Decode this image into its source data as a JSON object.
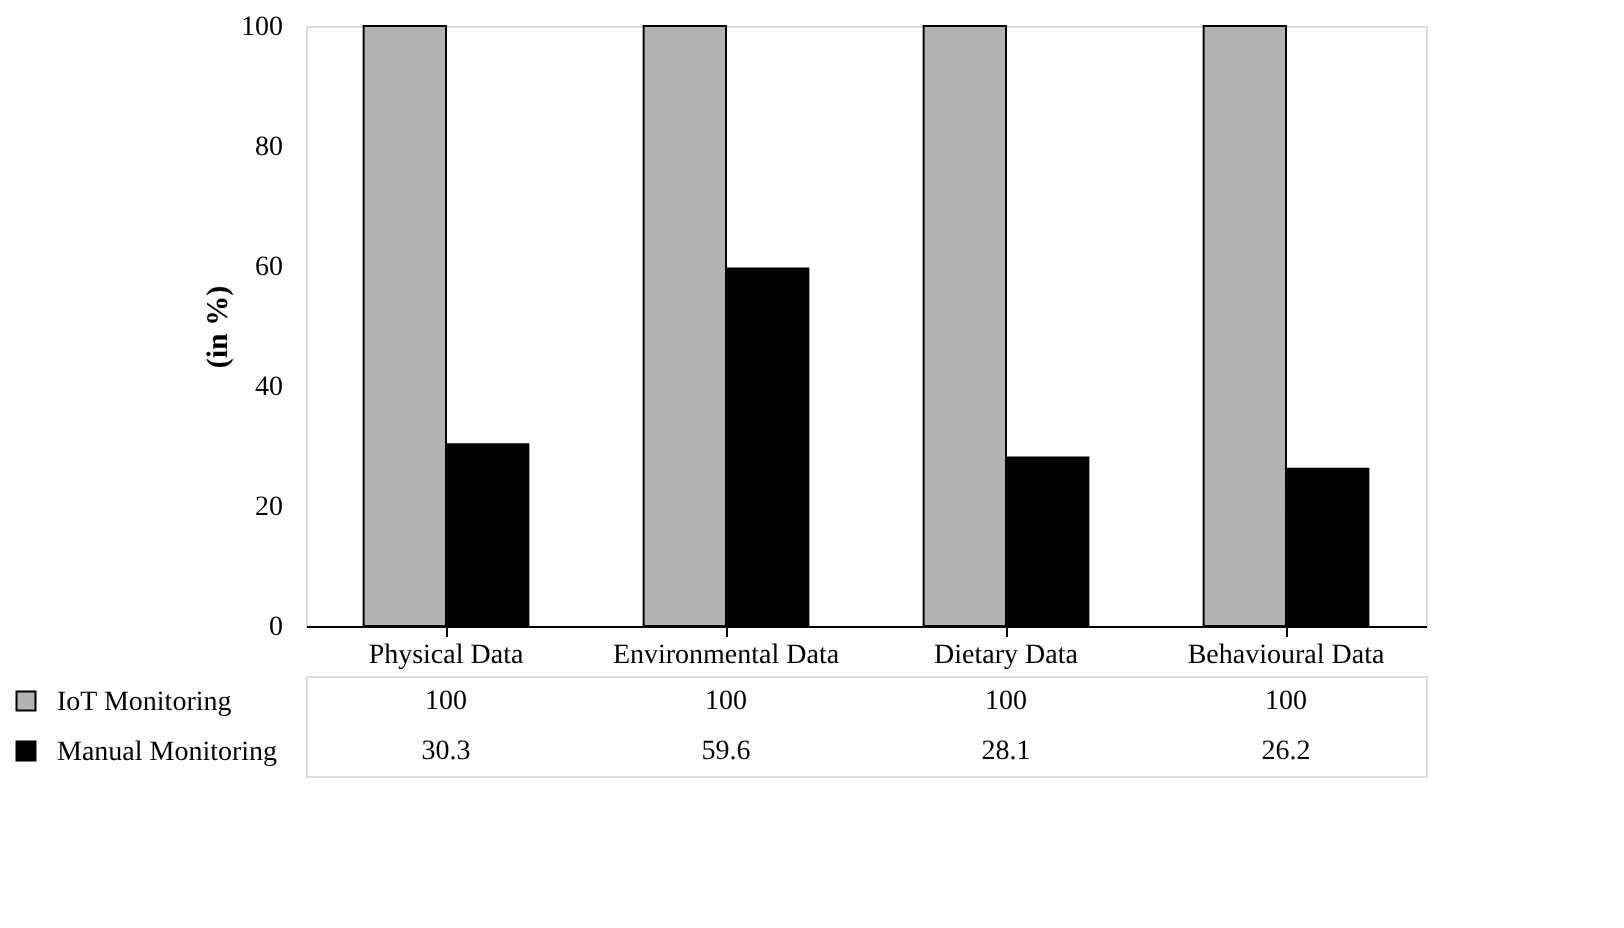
{
  "chart_data": {
    "type": "bar",
    "ylabel": "(in %)",
    "categories": [
      "Physical Data",
      "Environmental Data",
      "Dietary Data",
      "Behavioural Data"
    ],
    "series": [
      {
        "name": "IoT Monitoring",
        "color": "#b3b3b3",
        "values": [
          100,
          100,
          100,
          100
        ]
      },
      {
        "name": "Manual Monitoring",
        "color": "#000000",
        "values": [
          30.3,
          59.6,
          28.1,
          26.2
        ]
      }
    ],
    "ylim": [
      0,
      100
    ],
    "yticks": [
      0,
      20,
      40,
      60,
      80,
      100
    ],
    "grid": false,
    "legend": "bottom",
    "data_labels": true
  }
}
